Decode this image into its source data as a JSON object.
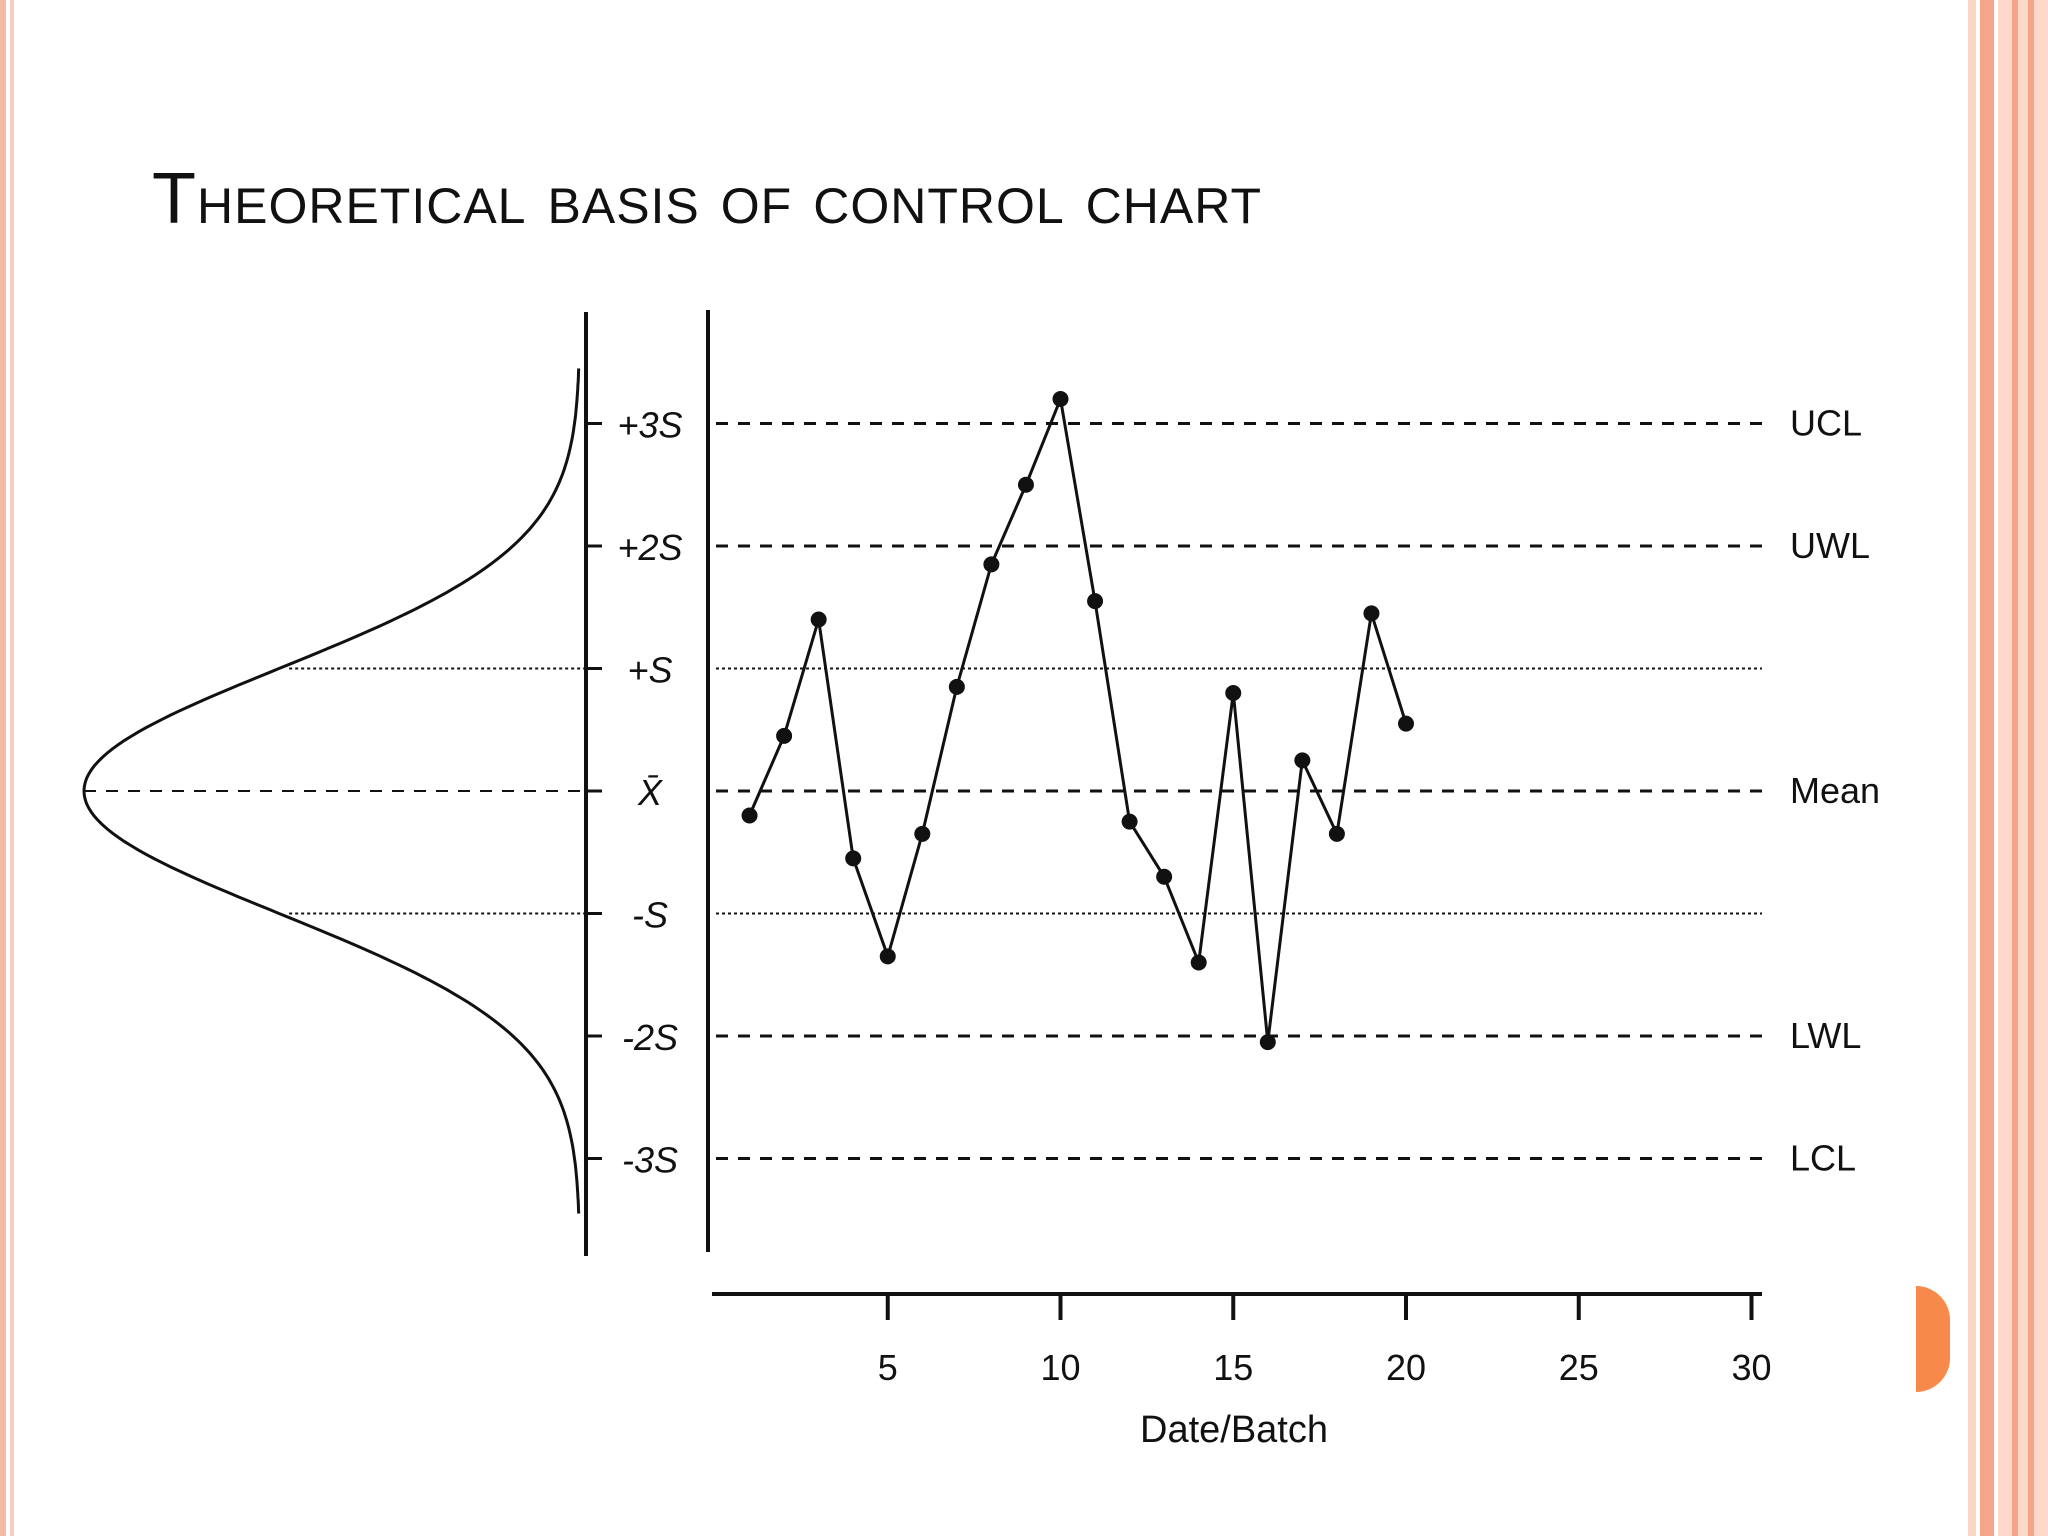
{
  "slide": {
    "title": "Theoretical basis of control chart",
    "colors": {
      "accent": "#f7894a",
      "border": "#f4a58a",
      "border_light": "#fbd5c6"
    }
  },
  "chart_data": {
    "type": "line",
    "xlabel": "Date/Batch",
    "x_ticks": [
      5,
      10,
      15,
      20,
      25,
      30
    ],
    "xlim": [
      0,
      30
    ],
    "ylim": [
      -3.8,
      3.4
    ],
    "y_unit": "S",
    "y_tick_labels": [
      {
        "value": 3,
        "label": "+3S"
      },
      {
        "value": 2,
        "label": "+2S"
      },
      {
        "value": 1,
        "label": "+S"
      },
      {
        "value": 0,
        "label": "X̄"
      },
      {
        "value": -1,
        "label": "-S"
      },
      {
        "value": -2,
        "label": "-2S"
      },
      {
        "value": -3,
        "label": "-3S"
      }
    ],
    "control_lines": [
      {
        "name": "UCL",
        "value": 3,
        "style": "dashed"
      },
      {
        "name": "UWL",
        "value": 2,
        "style": "dashed"
      },
      {
        "name": "",
        "value": 1,
        "style": "dotted"
      },
      {
        "name": "Mean",
        "value": 0,
        "style": "dashed"
      },
      {
        "name": "",
        "value": -1,
        "style": "dotted"
      },
      {
        "name": "LWL",
        "value": -2,
        "style": "dashed"
      },
      {
        "name": "LCL",
        "value": -3,
        "style": "dashed"
      }
    ],
    "series": [
      {
        "x": [
          1,
          2,
          3,
          4,
          5,
          6,
          7,
          8,
          9,
          10,
          11,
          12,
          13,
          14,
          15,
          16,
          17,
          18,
          19,
          20
        ],
        "y": [
          -0.2,
          0.45,
          1.4,
          -0.55,
          -1.35,
          -0.35,
          0.85,
          1.85,
          2.5,
          3.2,
          1.55,
          -0.25,
          -0.7,
          -1.4,
          0.8,
          -2.05,
          0.25,
          -0.35,
          1.45,
          0.55
        ]
      }
    ],
    "distribution": {
      "type": "normal",
      "orientation": "vertical",
      "mean": 0,
      "sd": 1
    },
    "grid": false,
    "legend": "none"
  }
}
